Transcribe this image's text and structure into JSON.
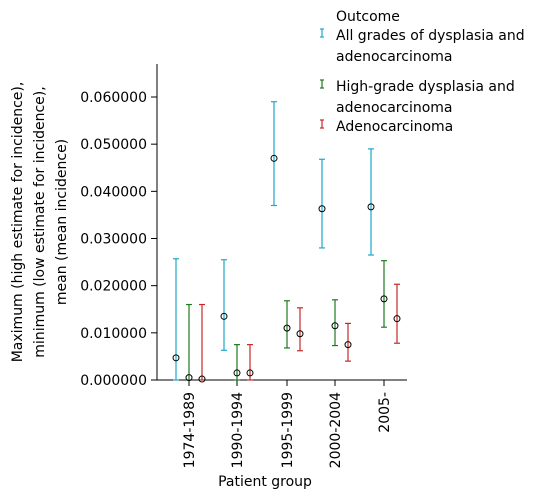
{
  "chart_data": {
    "type": "scatter",
    "title": "",
    "xlabel": "Patient group",
    "ylabel_lines": [
      "Maximum (high estimate for incidence),",
      "minimum (low estimate for incidence),",
      "mean (mean incidence)"
    ],
    "categories": [
      "1974-1989",
      "1990-1994",
      "1995-1999",
      "2000-2004",
      "2005-"
    ],
    "ylim": [
      0,
      0.064
    ],
    "yticks": [
      0,
      0.01,
      0.02,
      0.03,
      0.04,
      0.05,
      0.06
    ],
    "ytick_labels": [
      "0.000000",
      "0.010000",
      "0.020000",
      "0.030000",
      "0.040000",
      "0.050000",
      "0.060000"
    ],
    "grid": false,
    "legend": {
      "title": "Outcome",
      "position": "top-right",
      "entries": [
        {
          "lines": [
            "All grades of dysplasia and",
            "adenocarcinoma"
          ],
          "color": "#1fa7c9"
        },
        {
          "lines": [
            "High-grade dysplasia and",
            "adenocarcinoma"
          ],
          "color": "#1f7a1f"
        },
        {
          "lines": [
            "Adenocarcinoma"
          ],
          "color": "#c62828"
        }
      ]
    },
    "series": [
      {
        "name": "All grades of dysplasia and adenocarcinoma",
        "color": "#1fa7c9",
        "mean": [
          0.0047,
          0.0135,
          0.047,
          0.0363,
          0.0367
        ],
        "low": [
          0.0,
          0.0063,
          0.037,
          0.028,
          0.0265
        ],
        "high": [
          0.0257,
          0.0255,
          0.059,
          0.0468,
          0.049
        ]
      },
      {
        "name": "High-grade dysplasia and adenocarcinoma",
        "color": "#1f7a1f",
        "mean": [
          0.0005,
          0.0015,
          0.011,
          0.0115,
          0.0172
        ],
        "low": [
          0.0,
          0.0,
          0.0068,
          0.0073,
          0.0112
        ],
        "high": [
          0.016,
          0.0075,
          0.0168,
          0.017,
          0.0253
        ]
      },
      {
        "name": "Adenocarcinoma",
        "color": "#c62828",
        "mean": [
          0.0002,
          0.0015,
          0.0098,
          0.0075,
          0.013
        ],
        "low": [
          0.0,
          0.0,
          0.0062,
          0.004,
          0.0078
        ],
        "high": [
          0.016,
          0.0075,
          0.0153,
          0.012,
          0.0203
        ]
      }
    ]
  }
}
